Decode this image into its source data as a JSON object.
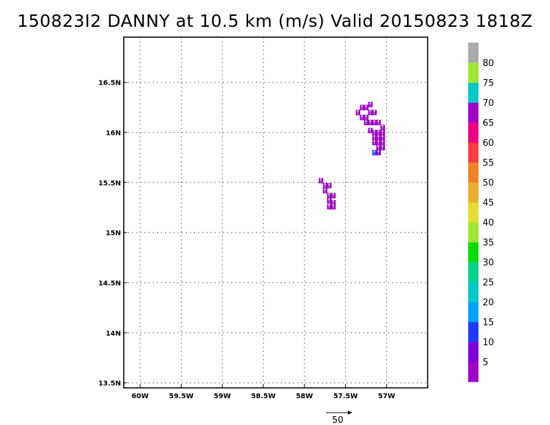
{
  "chart_data": {
    "type": "heatmap",
    "title": "150823I2 DANNY at 10.5 km (m/s) Valid 20150823 1818Z",
    "x_range": [
      -60.2,
      -56.5
    ],
    "y_range": [
      13.45,
      16.95
    ],
    "x_ticks": [
      {
        "value": -60.0,
        "label": "60W"
      },
      {
        "value": -59.5,
        "label": "59.5W"
      },
      {
        "value": -59.0,
        "label": "59W"
      },
      {
        "value": -58.5,
        "label": "58.5W"
      },
      {
        "value": -58.0,
        "label": "58W"
      },
      {
        "value": -57.5,
        "label": "57.5W"
      },
      {
        "value": -57.0,
        "label": "57W"
      }
    ],
    "y_ticks": [
      {
        "value": 13.5,
        "label": "13.5N"
      },
      {
        "value": 14.0,
        "label": "14N"
      },
      {
        "value": 14.5,
        "label": "14.5N"
      },
      {
        "value": 15.0,
        "label": "15N"
      },
      {
        "value": 15.5,
        "label": "15.5N"
      },
      {
        "value": 16.0,
        "label": "16N"
      },
      {
        "value": 16.5,
        "label": "16.5N"
      }
    ],
    "grid": true,
    "colorbar": {
      "labels": [
        "5",
        "10",
        "15",
        "20",
        "25",
        "30",
        "35",
        "40",
        "45",
        "50",
        "55",
        "60",
        "65",
        "70",
        "75",
        "80"
      ],
      "colors": [
        "#a000c8",
        "#8200dc",
        "#1e3cff",
        "#00a0ff",
        "#00c8c8",
        "#00d28c",
        "#00dc00",
        "#a0e632",
        "#e6dc32",
        "#e6af2d",
        "#f08228",
        "#fa3c3c",
        "#f00082",
        "#a000c8",
        "#00c8c8",
        "#a0e632",
        "#aaaaaa"
      ]
    },
    "cells": [
      {
        "lon": -57.35,
        "lat": 16.2,
        "speed": 4
      },
      {
        "lon": -57.3,
        "lat": 16.25,
        "speed": 4
      },
      {
        "lon": -57.25,
        "lat": 16.25,
        "speed": 4
      },
      {
        "lon": -57.2,
        "lat": 16.28,
        "speed": 4
      },
      {
        "lon": -57.3,
        "lat": 16.15,
        "speed": 4
      },
      {
        "lon": -57.25,
        "lat": 16.15,
        "speed": 4
      },
      {
        "lon": -57.2,
        "lat": 16.2,
        "speed": 4
      },
      {
        "lon": -57.15,
        "lat": 16.2,
        "speed": 4
      },
      {
        "lon": -57.25,
        "lat": 16.1,
        "speed": 4
      },
      {
        "lon": -57.2,
        "lat": 16.1,
        "speed": 4
      },
      {
        "lon": -57.15,
        "lat": 16.1,
        "speed": 4
      },
      {
        "lon": -57.1,
        "lat": 16.1,
        "speed": 4
      },
      {
        "lon": -57.05,
        "lat": 16.05,
        "speed": 4
      },
      {
        "lon": -57.2,
        "lat": 16.02,
        "speed": 4
      },
      {
        "lon": -57.15,
        "lat": 16.0,
        "speed": 4
      },
      {
        "lon": -57.1,
        "lat": 16.0,
        "speed": 4
      },
      {
        "lon": -57.05,
        "lat": 16.0,
        "speed": 4
      },
      {
        "lon": -57.15,
        "lat": 15.95,
        "speed": 4
      },
      {
        "lon": -57.1,
        "lat": 15.95,
        "speed": 4
      },
      {
        "lon": -57.05,
        "lat": 15.95,
        "speed": 4
      },
      {
        "lon": -57.15,
        "lat": 15.9,
        "speed": 4
      },
      {
        "lon": -57.1,
        "lat": 15.9,
        "speed": 4
      },
      {
        "lon": -57.05,
        "lat": 15.9,
        "speed": 4
      },
      {
        "lon": -57.1,
        "lat": 15.85,
        "speed": 4
      },
      {
        "lon": -57.05,
        "lat": 15.85,
        "speed": 4
      },
      {
        "lon": -57.15,
        "lat": 15.8,
        "speed": 12
      },
      {
        "lon": -57.1,
        "lat": 15.8,
        "speed": 8
      },
      {
        "lon": -57.8,
        "lat": 15.52,
        "speed": 4
      },
      {
        "lon": -57.75,
        "lat": 15.47,
        "speed": 4
      },
      {
        "lon": -57.7,
        "lat": 15.47,
        "speed": 4
      },
      {
        "lon": -57.75,
        "lat": 15.42,
        "speed": 4
      },
      {
        "lon": -57.7,
        "lat": 15.37,
        "speed": 4
      },
      {
        "lon": -57.65,
        "lat": 15.37,
        "speed": 4
      },
      {
        "lon": -57.7,
        "lat": 15.32,
        "speed": 4
      },
      {
        "lon": -57.65,
        "lat": 15.3,
        "speed": 4
      },
      {
        "lon": -57.7,
        "lat": 15.26,
        "speed": 4
      },
      {
        "lon": -57.65,
        "lat": 15.26,
        "speed": 4
      }
    ],
    "reference_vector": {
      "label": "50",
      "speed": 50
    }
  }
}
